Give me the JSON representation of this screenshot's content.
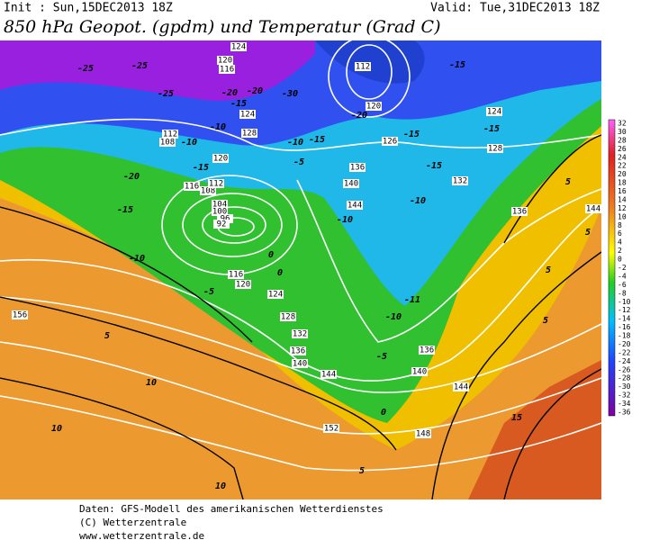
{
  "header": {
    "init": "Init : Sun,15DEC2013 18Z",
    "valid": "Valid: Tue,31DEC2013 18Z",
    "title": "850 hPa Geopot. (gpdm) und Temperatur (Grad C)"
  },
  "map": {
    "geopotential_labels": [
      "124",
      "120",
      "116",
      "112",
      "124",
      "128",
      "112",
      "108",
      "120",
      "116",
      "108",
      "112",
      "104",
      "100",
      "96",
      "92",
      "120",
      "124",
      "128",
      "126",
      "136",
      "140",
      "144",
      "132",
      "136",
      "144",
      "116",
      "120",
      "124",
      "128",
      "132",
      "136",
      "140",
      "144",
      "136",
      "140",
      "144",
      "148",
      "152",
      "156"
    ],
    "temperature_labels": [
      "-25",
      "-25",
      "-25",
      "-20",
      "-30",
      "-15",
      "-20",
      "-10",
      "-10",
      "-15",
      "-20",
      "-15",
      "-10",
      "-5",
      "0",
      "0",
      "-5",
      "-10",
      "-15",
      "-20",
      "-15",
      "-15",
      "-15",
      "-15",
      "-10",
      "-10",
      "-11",
      "-10",
      "-5",
      "5",
      "10",
      "10",
      "10",
      "5",
      "5",
      "5",
      "5",
      "15",
      "5",
      "0"
    ]
  },
  "colorbar": {
    "labels": [
      "32",
      "30",
      "28",
      "26",
      "24",
      "22",
      "20",
      "18",
      "16",
      "14",
      "12",
      "10",
      "8",
      "6",
      "4",
      "2",
      "0",
      "-2",
      "-4",
      "-6",
      "-8",
      "-10",
      "-12",
      "-14",
      "-16",
      "-18",
      "-20",
      "-22",
      "-24",
      "-26",
      "-28",
      "-30",
      "-32",
      "-34",
      "-36"
    ]
  },
  "footer": {
    "line1": "Daten: GFS-Modell des amerikanischen Wetterdienstes",
    "line2": "(C) Wetterzentrale",
    "line3": "www.wetterzentrale.de"
  }
}
